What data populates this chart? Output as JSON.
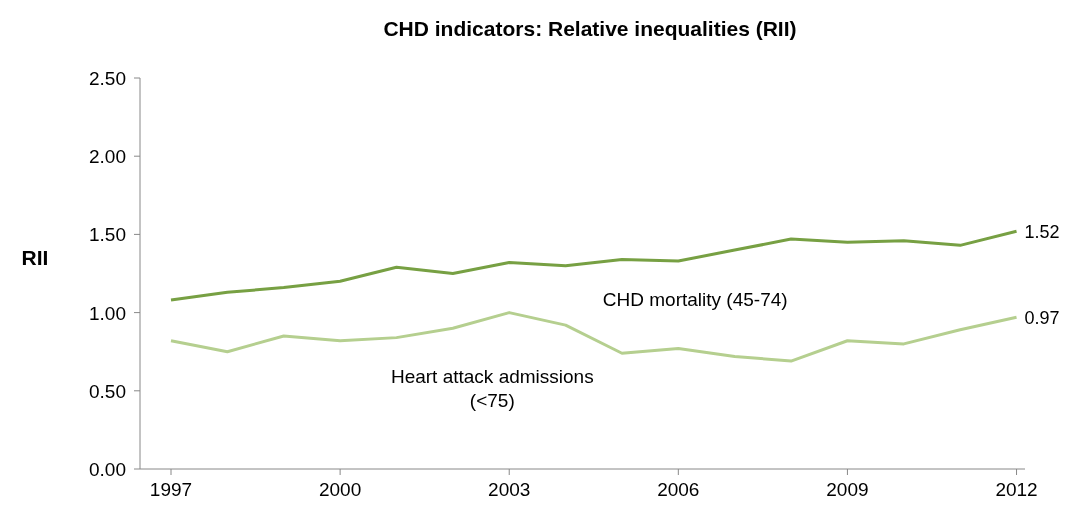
{
  "chart_data": {
    "type": "line",
    "title": "CHD indicators: Relative inequalities (RII)",
    "ylabel": "RII",
    "x": [
      1997,
      1998,
      1999,
      2000,
      2001,
      2002,
      2003,
      2004,
      2005,
      2006,
      2007,
      2008,
      2009,
      2010,
      2011,
      2012
    ],
    "xlim": [
      1996.45,
      2012.15
    ],
    "xticks": [
      1997,
      2000,
      2003,
      2006,
      2009,
      2012
    ],
    "ylim": [
      0,
      2.5
    ],
    "yticks": [
      {
        "value": 0,
        "label": "0.00"
      },
      {
        "value": 0.5,
        "label": "0.50"
      },
      {
        "value": 1,
        "label": "1.00"
      },
      {
        "value": 1.5,
        "label": "1.50"
      },
      {
        "value": 2,
        "label": "2.00"
      },
      {
        "value": 2.5,
        "label": "2.50"
      }
    ],
    "grid": false,
    "marker": "none",
    "line_style": "solid",
    "series": [
      {
        "name": "CHD mortality (45-74)",
        "color": "#77a043",
        "values": [
          1.08,
          1.13,
          1.16,
          1.2,
          1.29,
          1.25,
          1.32,
          1.3,
          1.34,
          1.33,
          1.4,
          1.47,
          1.45,
          1.46,
          1.43,
          1.52
        ],
        "value_labels": [
          null,
          null,
          null,
          null,
          null,
          null,
          null,
          null,
          null,
          null,
          null,
          null,
          null,
          null,
          null,
          "1.52"
        ]
      },
      {
        "name": "Heart attack admissions (<75)",
        "color": "#b5cf8f",
        "values": [
          0.82,
          0.75,
          0.85,
          0.82,
          0.84,
          0.9,
          1.0,
          0.92,
          0.74,
          0.77,
          0.72,
          0.69,
          0.82,
          0.8,
          0.89,
          0.97
        ],
        "value_labels": [
          null,
          null,
          null,
          null,
          null,
          null,
          null,
          null,
          null,
          null,
          null,
          null,
          null,
          null,
          null,
          "0.97"
        ]
      }
    ]
  }
}
